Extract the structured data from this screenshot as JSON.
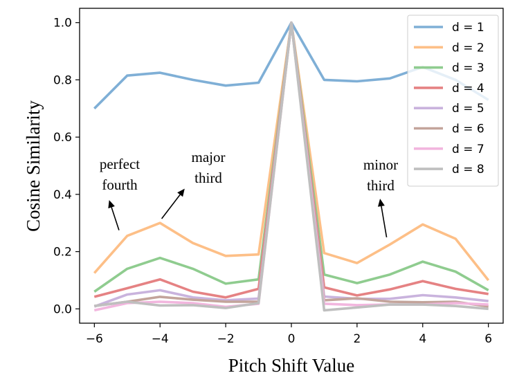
{
  "chart_data": {
    "type": "line",
    "title": "",
    "xlabel": "Pitch Shift Value",
    "ylabel": "Cosine Similarity",
    "x": [
      -6,
      -5,
      -4,
      -3,
      -2,
      -1,
      0,
      1,
      2,
      3,
      4,
      5,
      6
    ],
    "xlim": [
      -6.45,
      6.45
    ],
    "ylim": [
      -0.05,
      1.05
    ],
    "xticks": [
      -6,
      -4,
      -2,
      0,
      2,
      4,
      6
    ],
    "xtick_labels": [
      "−6",
      "−4",
      "−2",
      "0",
      "2",
      "4",
      "6"
    ],
    "yticks": [
      0.0,
      0.2,
      0.4,
      0.6,
      0.8,
      1.0
    ],
    "ytick_labels": [
      "0.0",
      "0.2",
      "0.4",
      "0.6",
      "0.8",
      "1.0"
    ],
    "grid": false,
    "legend_position": "top-right",
    "series": [
      {
        "name": "d = 1",
        "color": "#7fafd6",
        "values": [
          0.7,
          0.815,
          0.825,
          0.8,
          0.78,
          0.79,
          1.0,
          0.8,
          0.795,
          0.805,
          0.845,
          0.8,
          0.73
        ]
      },
      {
        "name": "d = 2",
        "color": "#fdbf87",
        "values": [
          0.125,
          0.255,
          0.3,
          0.23,
          0.185,
          0.19,
          1.0,
          0.195,
          0.16,
          0.225,
          0.295,
          0.245,
          0.1
        ]
      },
      {
        "name": "d = 3",
        "color": "#8fcc8f",
        "values": [
          0.06,
          0.14,
          0.178,
          0.14,
          0.088,
          0.103,
          1.0,
          0.12,
          0.09,
          0.12,
          0.165,
          0.13,
          0.065
        ]
      },
      {
        "name": "d = 4",
        "color": "#e58283",
        "values": [
          0.042,
          0.072,
          0.103,
          0.06,
          0.04,
          0.07,
          1.0,
          0.075,
          0.047,
          0.068,
          0.097,
          0.07,
          0.052
        ]
      },
      {
        "name": "d = 5",
        "color": "#c9b3dd",
        "values": [
          0.008,
          0.05,
          0.065,
          0.04,
          0.03,
          0.036,
          1.0,
          0.043,
          0.035,
          0.035,
          0.048,
          0.04,
          0.027
        ]
      },
      {
        "name": "d = 6",
        "color": "#c3a49b",
        "values": [
          0.01,
          0.025,
          0.042,
          0.032,
          0.025,
          0.025,
          1.0,
          0.03,
          0.037,
          0.025,
          0.023,
          0.025,
          0.008
        ]
      },
      {
        "name": "d = 7",
        "color": "#f2b6de",
        "values": [
          -0.005,
          0.02,
          0.025,
          0.02,
          0.007,
          0.018,
          1.0,
          0.018,
          0.013,
          0.015,
          0.015,
          0.02,
          0.015
        ]
      },
      {
        "name": "d = 8",
        "color": "#bfbfbf",
        "values": [
          0.01,
          0.025,
          0.012,
          0.013,
          0.003,
          0.02,
          1.0,
          -0.005,
          0.005,
          0.015,
          0.015,
          0.01,
          0.0
        ]
      }
    ],
    "annotations": [
      {
        "lines": [
          "perfect",
          "fourth"
        ],
        "arrow_from": [
          -5.25,
          0.275
        ],
        "arrow_to": [
          -5.55,
          0.38
        ]
      },
      {
        "lines": [
          "major",
          "third"
        ],
        "arrow_from": [
          -3.95,
          0.315
        ],
        "arrow_to": [
          -3.25,
          0.42
        ]
      },
      {
        "lines": [
          "minor",
          "third"
        ],
        "arrow_from": [
          2.9,
          0.25
        ],
        "arrow_to": [
          2.7,
          0.385
        ]
      }
    ]
  }
}
